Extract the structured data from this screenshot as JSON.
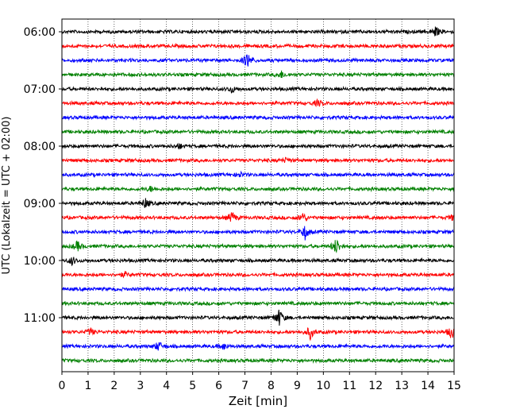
{
  "chart_data": {
    "type": "line",
    "subtype": "helicorder",
    "xlabel": "Zeit  [min]",
    "ylabel": "UTC (Lokalzeit = UTC + 02:00)",
    "xlim": [
      0,
      15
    ],
    "x_ticks": [
      "0",
      "1",
      "2",
      "3",
      "4",
      "5",
      "6",
      "7",
      "8",
      "9",
      "10",
      "11",
      "12",
      "13",
      "14",
      "15"
    ],
    "y_ticks": [
      "06:00",
      "07:00",
      "08:00",
      "09:00",
      "10:00",
      "11:00"
    ],
    "grid": "vertical-dotted",
    "trace_colors": [
      "#000000",
      "#ff0000",
      "#0000ff",
      "#008000"
    ],
    "traces": [
      {
        "start": "06:00",
        "color": "#000000",
        "events": [
          {
            "t": 14.3,
            "amp": 6
          }
        ]
      },
      {
        "start": "06:15",
        "color": "#ff0000",
        "events": []
      },
      {
        "start": "06:30",
        "color": "#0000ff",
        "events": [
          {
            "t": 7.1,
            "amp": 10
          }
        ]
      },
      {
        "start": "06:45",
        "color": "#008000",
        "events": [
          {
            "t": 8.4,
            "amp": 4
          }
        ]
      },
      {
        "start": "07:00",
        "color": "#000000",
        "events": [
          {
            "t": 6.5,
            "amp": 4
          }
        ]
      },
      {
        "start": "07:15",
        "color": "#ff0000",
        "events": [
          {
            "t": 9.8,
            "amp": 4
          }
        ]
      },
      {
        "start": "07:30",
        "color": "#0000ff",
        "events": []
      },
      {
        "start": "07:45",
        "color": "#008000",
        "events": []
      },
      {
        "start": "08:00",
        "color": "#000000",
        "events": [
          {
            "t": 4.5,
            "amp": 3
          }
        ]
      },
      {
        "start": "08:15",
        "color": "#ff0000",
        "events": [
          {
            "t": 8.6,
            "amp": 3
          }
        ]
      },
      {
        "start": "08:30",
        "color": "#0000ff",
        "events": [
          {
            "t": 6.8,
            "amp": 3
          }
        ]
      },
      {
        "start": "08:45",
        "color": "#008000",
        "events": [
          {
            "t": 3.4,
            "amp": 3
          }
        ]
      },
      {
        "start": "09:00",
        "color": "#000000",
        "events": [
          {
            "t": 3.2,
            "amp": 6
          }
        ]
      },
      {
        "start": "09:15",
        "color": "#ff0000",
        "events": [
          {
            "t": 6.5,
            "amp": 7
          },
          {
            "t": 9.2,
            "amp": 6
          },
          {
            "t": 15.0,
            "amp": 5
          }
        ]
      },
      {
        "start": "09:30",
        "color": "#0000ff",
        "events": [
          {
            "t": 9.3,
            "amp": 9
          }
        ]
      },
      {
        "start": "09:45",
        "color": "#008000",
        "events": [
          {
            "t": 0.6,
            "amp": 6
          },
          {
            "t": 10.5,
            "amp": 10
          }
        ]
      },
      {
        "start": "10:00",
        "color": "#000000",
        "events": [
          {
            "t": 0.4,
            "amp": 5
          }
        ]
      },
      {
        "start": "10:15",
        "color": "#ff0000",
        "events": [
          {
            "t": 2.4,
            "amp": 3
          }
        ]
      },
      {
        "start": "10:30",
        "color": "#0000ff",
        "events": []
      },
      {
        "start": "10:45",
        "color": "#008000",
        "events": []
      },
      {
        "start": "11:00",
        "color": "#000000",
        "events": [
          {
            "t": 8.3,
            "amp": 11
          }
        ]
      },
      {
        "start": "11:15",
        "color": "#ff0000",
        "events": [
          {
            "t": 9.5,
            "amp": 8
          },
          {
            "t": 14.9,
            "amp": 8
          },
          {
            "t": 1.1,
            "amp": 4
          }
        ]
      },
      {
        "start": "11:30",
        "color": "#0000ff",
        "events": [
          {
            "t": 3.7,
            "amp": 6
          },
          {
            "t": 6.2,
            "amp": 4
          }
        ]
      },
      {
        "start": "11:45",
        "color": "#008000",
        "events": []
      }
    ]
  }
}
